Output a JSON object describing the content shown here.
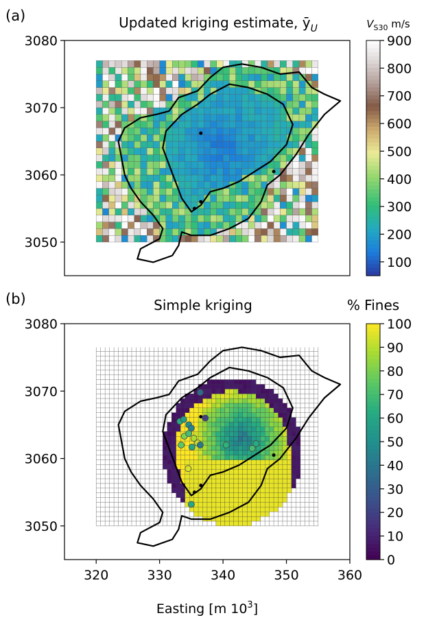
{
  "chart_data": [
    {
      "panel_label": "(a)",
      "type": "heatmap",
      "title": "Updated kriging estimate, ȳ",
      "title_sub": "U",
      "xlim": [
        315,
        360
      ],
      "ylim": [
        3045,
        3080
      ],
      "yticks": [
        3050,
        3060,
        3070,
        3080
      ],
      "grid_extent": {
        "x": [
          320,
          355
        ],
        "y": [
          3050,
          3076.5
        ]
      },
      "grid_cell": 1.0,
      "colorbar": {
        "label_main": "V",
        "label_sub": "S30",
        "label_unit": " m/s",
        "range": [
          50,
          900
        ],
        "ticks": [
          100,
          200,
          300,
          400,
          500,
          600,
          700,
          800,
          900
        ],
        "colormap": "gist_earth_r"
      }
    },
    {
      "panel_label": "(b)",
      "type": "heatmap",
      "title": "Simple kriging",
      "xlabel_main": "Easting [m 10",
      "xlabel_sup": "3",
      "xlabel_end": "]",
      "xlim": [
        315,
        360
      ],
      "ylim": [
        3045,
        3080
      ],
      "xticks": [
        320,
        330,
        340,
        350,
        360
      ],
      "yticks": [
        3050,
        3060,
        3070,
        3080
      ],
      "grid_extent": {
        "x": [
          320,
          355
        ],
        "y": [
          3050,
          3076.5
        ]
      },
      "grid_cell": 0.7,
      "colorbar": {
        "label": "% Fines",
        "range": [
          0,
          100
        ],
        "ticks": [
          0,
          10,
          20,
          30,
          40,
          50,
          60,
          70,
          80,
          90,
          100
        ],
        "colormap": "viridis"
      },
      "observations": [
        {
          "x": 333.2,
          "y": 3065.5,
          "v": 62
        },
        {
          "x": 333.8,
          "y": 3065.8,
          "v": 55
        },
        {
          "x": 334.6,
          "y": 3065.0,
          "v": 50
        },
        {
          "x": 335.0,
          "y": 3064.5,
          "v": 45
        },
        {
          "x": 333.9,
          "y": 3063.3,
          "v": 80
        },
        {
          "x": 334.6,
          "y": 3063.7,
          "v": 70
        },
        {
          "x": 335.4,
          "y": 3063.0,
          "v": 88
        },
        {
          "x": 336.0,
          "y": 3062.3,
          "v": 92
        },
        {
          "x": 333.4,
          "y": 3062.0,
          "v": 75
        },
        {
          "x": 335.1,
          "y": 3061.7,
          "v": 60
        },
        {
          "x": 336.4,
          "y": 3062.0,
          "v": 40
        },
        {
          "x": 334.5,
          "y": 3058.5,
          "v": 95
        },
        {
          "x": 335.0,
          "y": 3053.2,
          "v": 60
        },
        {
          "x": 336.4,
          "y": 3069.8,
          "v": 35
        },
        {
          "x": 340.5,
          "y": 3062.0,
          "v": 65
        },
        {
          "x": 345.2,
          "y": 3062.2,
          "v": 62
        },
        {
          "x": 344.6,
          "y": 3061.5,
          "v": 70
        },
        {
          "x": 337.2,
          "y": 3066.0,
          "v": 20
        }
      ]
    }
  ]
}
